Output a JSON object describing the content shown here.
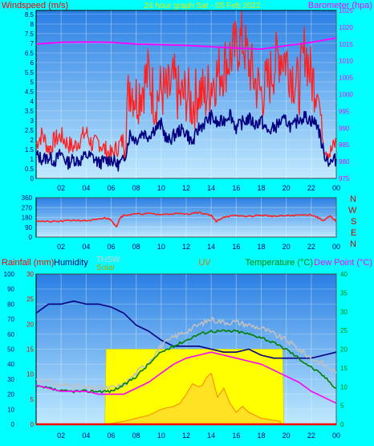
{
  "chart_data": [
    {
      "type": "line",
      "title": "24 hour graph Sat - 05 Feb 2022",
      "ylabel": "Windspeed (m/s)",
      "y2label": "Barometer (hpa)",
      "ylim": [
        0,
        8.7
      ],
      "y2lim": [
        975,
        1025
      ],
      "yticks": [
        "0",
        "0.5",
        "1",
        "1.5",
        "2",
        "2.5",
        "3",
        "3.5",
        "4",
        "4.5",
        "5",
        "5.5",
        "6",
        "6.5",
        "7",
        "7.5",
        "8",
        "8.5"
      ],
      "y2ticks": [
        "975",
        "980",
        "985",
        "990",
        "995",
        "1000",
        "1005",
        "1010",
        "1015",
        "1020",
        "1025"
      ],
      "xticks": [
        "02",
        "04",
        "06",
        "08",
        "10",
        "12",
        "14",
        "16",
        "18",
        "20",
        "22",
        "00"
      ],
      "series": [
        {
          "key": "gust",
          "color": "#ff2020",
          "x": [
            0,
            0.5,
            1,
            1.5,
            2,
            2.5,
            3,
            3.5,
            4,
            4.5,
            5,
            5.5,
            6,
            6.5,
            7,
            7.5,
            8,
            8.5,
            9,
            9.5,
            10,
            10.5,
            11,
            11.5,
            12,
            12.5,
            13,
            13.5,
            14,
            14.5,
            15,
            15.5,
            16,
            16.5,
            17,
            17.5,
            18,
            18.5,
            19,
            19.5,
            20,
            20.5,
            21,
            21.5,
            22,
            22.5,
            23,
            23.5,
            24
          ],
          "values": [
            1.8,
            2.3,
            1.5,
            2.0,
            2.2,
            1.8,
            1.6,
            2.0,
            2.4,
            1.7,
            1.9,
            1.5,
            1.2,
            1.6,
            2.0,
            5.0,
            4.2,
            4.8,
            5.4,
            4.0,
            4.6,
            4.3,
            5.0,
            4.1,
            4.4,
            3.8,
            4.6,
            4.2,
            5.0,
            5.4,
            5.8,
            6.3,
            6.8,
            7.2,
            6.0,
            5.0,
            4.4,
            4.9,
            5.8,
            6.5,
            6.2,
            5.4,
            4.6,
            6.8,
            5.2,
            4.8,
            1.7,
            1.3,
            1.9
          ]
        },
        {
          "key": "average",
          "color": "#000080",
          "x": [
            0,
            0.5,
            1,
            1.5,
            2,
            2.5,
            3,
            3.5,
            4,
            4.5,
            5,
            5.5,
            6,
            6.5,
            7,
            7.5,
            8,
            8.5,
            9,
            9.5,
            10,
            10.5,
            11,
            11.5,
            12,
            12.5,
            13,
            13.5,
            14,
            14.5,
            15,
            15.5,
            16,
            16.5,
            17,
            17.5,
            18,
            18.5,
            19,
            19.5,
            20,
            20.5,
            21,
            21.5,
            22,
            22.5,
            23,
            23.5,
            24
          ],
          "values": [
            1.2,
            1.0,
            1.1,
            0.9,
            1.3,
            0.8,
            1.0,
            0.9,
            1.2,
            1.1,
            0.8,
            0.9,
            1.0,
            0.7,
            0.9,
            2.3,
            2.0,
            2.4,
            2.2,
            2.6,
            2.8,
            1.9,
            2.2,
            2.5,
            2.4,
            1.8,
            2.6,
            2.9,
            3.2,
            2.8,
            3.0,
            3.4,
            2.6,
            2.9,
            3.1,
            2.8,
            3.0,
            2.4,
            2.6,
            2.9,
            3.0,
            2.6,
            3.1,
            3.2,
            3.0,
            2.8,
            1.3,
            0.8,
            1.0
          ]
        },
        {
          "key": "barometer",
          "axis": "y2",
          "color": "#ff00ff",
          "x": [
            0,
            2,
            4,
            6,
            8,
            10,
            12,
            14,
            16,
            18,
            20,
            22,
            24
          ],
          "values": [
            1015.0,
            1015.5,
            1015.6,
            1015.5,
            1015.0,
            1014.8,
            1014.6,
            1014.2,
            1013.8,
            1013.5,
            1014.5,
            1015.5,
            1016.8
          ]
        }
      ]
    },
    {
      "type": "line",
      "ylabels": [
        "N",
        "W",
        "S",
        "E",
        "N"
      ],
      "ylim": [
        0,
        360
      ],
      "yticks": [
        "0",
        "90",
        "180",
        "270",
        "360"
      ],
      "xticks": [
        "02",
        "04",
        "06",
        "08",
        "10",
        "12",
        "14",
        "16",
        "18",
        "20",
        "22",
        "00"
      ],
      "series": [
        {
          "key": "direction",
          "color": "#ff2020",
          "x": [
            0,
            1,
            2,
            3,
            4,
            5,
            5.5,
            6,
            6.4,
            6.7,
            7,
            8,
            9,
            10,
            11,
            12,
            13,
            14,
            14.4,
            15,
            16,
            17,
            18,
            19,
            20,
            21,
            22,
            22.5,
            23,
            23.5,
            24
          ],
          "values": [
            150,
            140,
            145,
            155,
            150,
            160,
            175,
            160,
            90,
            175,
            200,
            210,
            215,
            205,
            215,
            210,
            225,
            200,
            140,
            185,
            195,
            190,
            200,
            190,
            195,
            200,
            205,
            180,
            150,
            190,
            145
          ]
        }
      ]
    },
    {
      "type": "line",
      "labels": [
        "Rainfall (mm)",
        "Humidity",
        "THSW",
        "Solar",
        "UV",
        "Temperature (°C)",
        "Dew Point (°C)"
      ],
      "ylim": [
        0,
        100
      ],
      "y2lim": [
        0,
        30
      ],
      "y3lim": [
        0,
        40
      ],
      "yticks": [
        "0",
        "10",
        "20",
        "30",
        "40",
        "50",
        "60",
        "70",
        "80",
        "90",
        "100"
      ],
      "y2ticks": [
        "0",
        "5",
        "10",
        "15",
        "20",
        "25",
        "30"
      ],
      "y3ticks": [
        "0",
        "5",
        "10",
        "15",
        "20",
        "25",
        "30",
        "35",
        "40"
      ],
      "xticks": [
        "02",
        "04",
        "06",
        "08",
        "10",
        "12",
        "14",
        "16",
        "18",
        "20",
        "22",
        "00"
      ],
      "series": [
        {
          "key": "solar",
          "color": "#ffff00",
          "x": [
            5.5,
            5.6,
            19.7,
            19.8
          ],
          "values": [
            0,
            50,
            50,
            0
          ]
        },
        {
          "key": "uv",
          "color": "#ff8000",
          "x": [
            5.6,
            7,
            8,
            9,
            10,
            11,
            11.5,
            12,
            12.5,
            13,
            13.3,
            13.6,
            14,
            14.5,
            15,
            15.5,
            16,
            16.5,
            17,
            18,
            19.5,
            19.6
          ],
          "values": [
            0,
            2,
            4,
            6,
            10,
            12,
            14,
            20,
            27,
            25,
            26,
            31,
            34,
            18,
            24,
            14,
            8,
            12,
            8,
            4,
            2,
            0
          ]
        },
        {
          "key": "humidity",
          "color": "#000080",
          "x": [
            0,
            1,
            2,
            3,
            4,
            5,
            6,
            7,
            8,
            9,
            10,
            11,
            12,
            13,
            14,
            15,
            16,
            17,
            18,
            19,
            20,
            21,
            22,
            23,
            24
          ],
          "values": [
            74,
            80,
            80,
            82,
            80,
            80,
            78,
            74,
            66,
            62,
            56,
            52,
            52,
            52,
            50,
            48,
            48,
            50,
            46,
            44,
            44,
            44,
            44,
            46,
            48
          ]
        },
        {
          "key": "thsw",
          "color": "#c0c0c0",
          "x": [
            0,
            1,
            2,
            3,
            4,
            5,
            6,
            7,
            8,
            9,
            10,
            11,
            12,
            13,
            14,
            15,
            16,
            17,
            18,
            19,
            20,
            21,
            22,
            23,
            24
          ],
          "values": [
            30,
            28,
            26,
            26,
            24,
            24,
            24,
            26,
            34,
            42,
            52,
            58,
            62,
            66,
            70,
            68,
            68,
            66,
            64,
            60,
            56,
            50,
            44,
            40,
            34
          ]
        },
        {
          "key": "temperature",
          "color": "#008000",
          "x": [
            0,
            1,
            2,
            3,
            4,
            5,
            6,
            7,
            8,
            9,
            10,
            11,
            12,
            13,
            14,
            15,
            16,
            17,
            18,
            19,
            20,
            21,
            22,
            23,
            24
          ],
          "values": [
            25,
            24,
            22,
            22,
            22,
            22,
            22,
            26,
            32,
            40,
            48,
            52,
            56,
            60,
            62,
            62,
            62,
            60,
            58,
            54,
            50,
            44,
            38,
            32,
            24
          ]
        },
        {
          "key": "dewpoint",
          "color": "#ff00ff",
          "x": [
            0,
            1,
            2,
            3,
            4,
            5,
            6,
            7,
            8,
            9,
            10,
            11,
            12,
            13,
            14,
            15,
            16,
            17,
            18,
            19,
            20,
            21,
            22,
            23,
            24
          ],
          "values": [
            26,
            24,
            22,
            22,
            22,
            20,
            20,
            20,
            24,
            28,
            34,
            40,
            44,
            46,
            48,
            46,
            44,
            42,
            40,
            36,
            32,
            28,
            22,
            18,
            14
          ]
        },
        {
          "key": "rainfall",
          "color": "#ff0000",
          "x": [
            0,
            24
          ],
          "values": [
            0,
            0
          ]
        }
      ]
    }
  ]
}
